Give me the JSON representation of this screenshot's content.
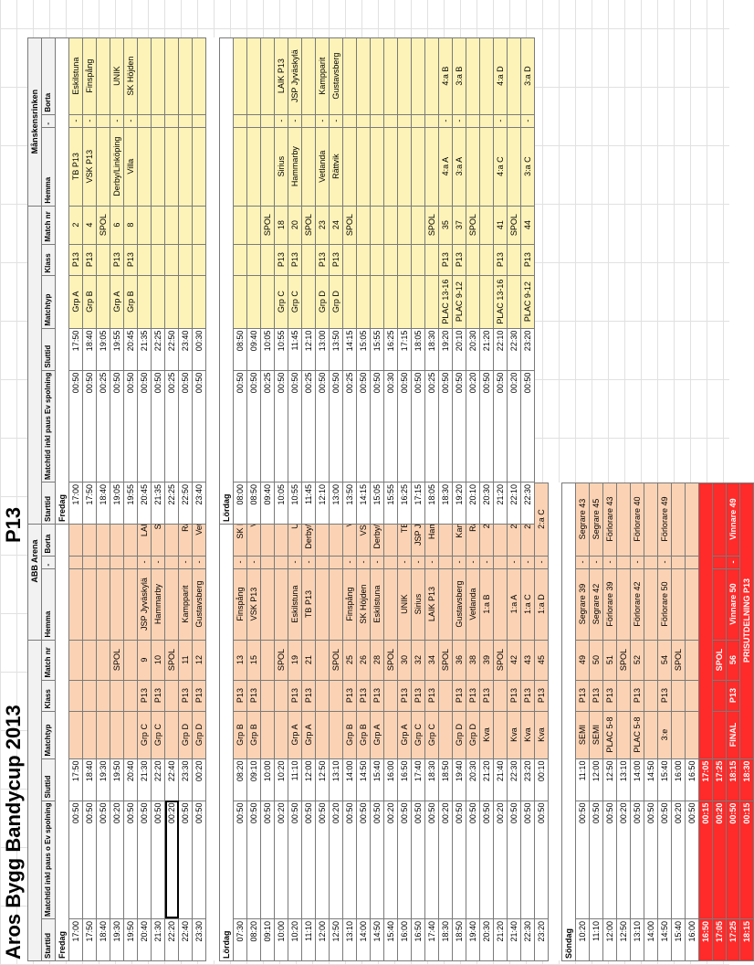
{
  "title": "Aros Bygg Bandycup 2013",
  "class_title": "P13",
  "left": {
    "arena": "ABB Arena",
    "headers": [
      "Starttid",
      "Matchtid inkl paus o Ev spolning",
      "Sluttid",
      "Matchtyp",
      "Klass",
      "Match nr",
      "Hemma",
      "-",
      "Borta"
    ],
    "days": [
      {
        "label": "Fredag",
        "rows": [
          [
            "17:00",
            "00:50",
            "17:50",
            "",
            "",
            "",
            "",
            "",
            ""
          ],
          [
            "17:50",
            "00:50",
            "18:40",
            "",
            "",
            "",
            "",
            "",
            ""
          ],
          [
            "18:40",
            "00:50",
            "19:30",
            "",
            "",
            "",
            "",
            "",
            ""
          ],
          [
            "19:30",
            "00:20",
            "19:50",
            "",
            "",
            "SPOL",
            "",
            "",
            ""
          ],
          [
            "19:50",
            "00:50",
            "20:40",
            "",
            "",
            "",
            "",
            "",
            ""
          ],
          [
            "20:40",
            "00:50",
            "21:30",
            "Grp C",
            "P13",
            "9",
            "JSP Jyväskylä",
            "-",
            "LAIK P13"
          ],
          [
            "21:30",
            "00:50",
            "22:20",
            "Grp C",
            "P13",
            "10",
            "Hammarby",
            "-",
            "Sirius"
          ],
          [
            "22:20",
            "00:20",
            "22:40",
            "",
            "",
            "SPOL",
            "",
            "",
            ""
          ],
          [
            "22:40",
            "00:50",
            "23:30",
            "Grp D",
            "P13",
            "11",
            "Kampparit",
            "-",
            "Rättvik"
          ],
          [
            "23:30",
            "00:50",
            "00:20",
            "Grp D",
            "P13",
            "12",
            "Gustavsberg",
            "-",
            "Vetlanda"
          ]
        ]
      },
      {
        "label": "Lördag",
        "rows": [
          [
            "07:30",
            "00:50",
            "08:20",
            "Grp B",
            "P13",
            "13",
            "Finspång",
            "-",
            "SK Höjden"
          ],
          [
            "08:20",
            "00:50",
            "09:10",
            "Grp B",
            "P13",
            "15",
            "VSK P13",
            "-",
            "Villa"
          ],
          [
            "09:10",
            "00:50",
            "10:00",
            "",
            "",
            "",
            "",
            "",
            ""
          ],
          [
            "10:00",
            "00:20",
            "10:20",
            "",
            "",
            "SPOL",
            "",
            "",
            ""
          ],
          [
            "10:20",
            "00:50",
            "11:10",
            "Grp A",
            "P13",
            "19",
            "Eskilstuna",
            "-",
            "UNIK"
          ],
          [
            "11:10",
            "00:50",
            "12:00",
            "Grp A",
            "P13",
            "21",
            "TB P13",
            "-",
            "Derby/Linköping"
          ],
          [
            "12:00",
            "00:50",
            "12:50",
            "",
            "",
            "",
            "",
            "",
            ""
          ],
          [
            "12:50",
            "00:20",
            "13:10",
            "",
            "",
            "SPOL",
            "",
            "",
            ""
          ],
          [
            "13:10",
            "00:50",
            "14:00",
            "Grp B",
            "P13",
            "25",
            "Finspång",
            "-",
            "Villa"
          ],
          [
            "14:00",
            "00:50",
            "14:50",
            "Grp B",
            "P13",
            "26",
            "SK Höjden",
            "-",
            "VSK P13"
          ],
          [
            "14:50",
            "00:50",
            "15:40",
            "Grp A",
            "P13",
            "28",
            "Eskilstuna",
            "-",
            "Derby/Linköping"
          ],
          [
            "15:40",
            "00:20",
            "16:00",
            "",
            "",
            "SPOL",
            "",
            "",
            ""
          ],
          [
            "16:00",
            "00:50",
            "16:50",
            "Grp A",
            "P13",
            "30",
            "UNIK",
            "-",
            "TB P13"
          ],
          [
            "16:50",
            "00:50",
            "17:40",
            "Grp C",
            "P13",
            "32",
            "Sirius",
            "-",
            "JSP Jyväskylä"
          ],
          [
            "17:40",
            "00:50",
            "18:30",
            "Grp C",
            "P13",
            "34",
            "LAIK P13",
            "-",
            "Hammarby"
          ],
          [
            "18:30",
            "00:20",
            "18:50",
            "",
            "",
            "SPOL",
            "",
            "",
            ""
          ],
          [
            "18:50",
            "00:50",
            "19:40",
            "Grp D",
            "P13",
            "36",
            "Gustavsberg",
            "-",
            "Kampparit"
          ],
          [
            "19:40",
            "00:50",
            "20:30",
            "Grp D",
            "P13",
            "38",
            "Vetlanda",
            "-",
            "Rättvik"
          ],
          [
            "20:30",
            "00:50",
            "21:20",
            "Kva",
            "P13",
            "39",
            "1:a B",
            "-",
            "2:a A"
          ],
          [
            "21:20",
            "00:20",
            "21:40",
            "",
            "",
            "SPOL",
            "",
            "",
            ""
          ],
          [
            "21:40",
            "00:50",
            "22:30",
            "Kva",
            "P13",
            "42",
            "1:a A",
            "-",
            "2:a B"
          ],
          [
            "22:30",
            "00:50",
            "23:20",
            "Kva",
            "P13",
            "43",
            "1:a C",
            "-",
            "2:a D"
          ],
          [
            "23:20",
            "00:50",
            "00:10",
            "Kva",
            "P13",
            "45",
            "1:a D",
            "-",
            "2:a C"
          ]
        ]
      },
      {
        "label": "Söndag",
        "rows": [
          [
            "10:20",
            "00:50",
            "11:10",
            "SEMI",
            "P13",
            "49",
            "Segrare 39",
            "-",
            "Segrare 43"
          ],
          [
            "11:10",
            "00:50",
            "12:00",
            "SEMI",
            "P13",
            "50",
            "Segrare 42",
            "-",
            "Segrare 45"
          ],
          [
            "12:00",
            "00:50",
            "12:50",
            "PLAC 5-8",
            "P13",
            "51",
            "Förlorare 39",
            "-",
            "Förlorare 43"
          ],
          [
            "12:50",
            "00:20",
            "13:10",
            "",
            "",
            "SPOL",
            "",
            "",
            ""
          ],
          [
            "13:10",
            "00:50",
            "14:00",
            "PLAC 5-8",
            "P13",
            "52",
            "Förlorare 42",
            "-",
            "Förlorare 40"
          ],
          [
            "14:00",
            "00:50",
            "14:50",
            "",
            "",
            "",
            "",
            "",
            ""
          ],
          [
            "14:50",
            "00:50",
            "15:40",
            "3:e",
            "P13",
            "54",
            "Förlorare 50",
            "-",
            "Förlorare 49"
          ],
          [
            "15:40",
            "00:20",
            "16:00",
            "",
            "",
            "SPOL",
            "",
            "",
            ""
          ],
          [
            "16:00",
            "00:50",
            "16:50",
            "",
            "",
            "",
            "",
            "",
            ""
          ]
        ]
      }
    ],
    "red_rows": [
      [
        "16:50",
        "00:15",
        "17:05"
      ],
      [
        "17:05",
        "00:20",
        "17:25",
        "",
        "",
        "SPOL",
        "",
        "",
        ""
      ],
      [
        "17:25",
        "00:50",
        "18:15",
        "FINAL",
        "P13",
        "56",
        "Vinnare 50",
        "-",
        "Vinnare 49"
      ],
      [
        "18:15",
        "00:15",
        "18:30"
      ]
    ],
    "prize_label": "PRISUTDELNING P13"
  },
  "right": {
    "rink": "Månskensrinken",
    "headers": [
      "Starttid",
      "Matchtid inkl paus Ev spolning",
      "Sluttid",
      "Matchtyp",
      "Klass",
      "Match nr",
      "Hemma",
      "-",
      "Borta"
    ],
    "days": [
      {
        "label": "Fredag",
        "rows": [
          [
            "17:00",
            "00:50",
            "17:50",
            "Grp A",
            "P13",
            "2",
            "TB P13",
            "-",
            "Eskilstuna"
          ],
          [
            "17:50",
            "00:50",
            "18:40",
            "Grp B",
            "P13",
            "4",
            "VSK P13",
            "-",
            "Finspång"
          ],
          [
            "18:40",
            "00:25",
            "19:05",
            "",
            "",
            "SPOL",
            "",
            "",
            ""
          ],
          [
            "19:05",
            "00:50",
            "19:55",
            "Grp A",
            "P13",
            "6",
            "Derby/Linköping",
            "-",
            "UNIK"
          ],
          [
            "19:55",
            "00:50",
            "20:45",
            "Grp B",
            "P13",
            "8",
            "Villa",
            "-",
            "SK Höjden"
          ],
          [
            "20:45",
            "00:50",
            "21:35",
            "",
            "",
            "",
            "",
            "",
            ""
          ],
          [
            "21:35",
            "00:50",
            "22:25",
            "",
            "",
            "",
            "",
            "",
            ""
          ],
          [
            "22:25",
            "00:25",
            "22:50",
            "",
            "",
            "",
            "",
            "",
            ""
          ],
          [
            "22:50",
            "00:50",
            "23:40",
            "",
            "",
            "",
            "",
            "",
            ""
          ],
          [
            "23:40",
            "00:50",
            "00:30",
            "",
            "",
            "",
            "",
            "",
            ""
          ]
        ]
      },
      {
        "label": "Lördag",
        "rows": [
          [
            "08:00",
            "00:50",
            "08:50",
            "",
            "",
            "",
            "",
            "",
            ""
          ],
          [
            "08:50",
            "00:50",
            "09:40",
            "",
            "",
            "",
            "",
            "",
            ""
          ],
          [
            "09:40",
            "00:25",
            "10:05",
            "",
            "",
            "SPOL",
            "",
            "",
            ""
          ],
          [
            "10:05",
            "00:50",
            "10:55",
            "Grp C",
            "P13",
            "18",
            "Sirius",
            "-",
            "LAIK P13"
          ],
          [
            "10:55",
            "00:50",
            "11:45",
            "Grp C",
            "P13",
            "20",
            "Hammarby",
            "-",
            "JSP Jyväskylä"
          ],
          [
            "11:45",
            "00:25",
            "12:10",
            "",
            "",
            "SPOL",
            "",
            "",
            ""
          ],
          [
            "12:10",
            "00:50",
            "13:00",
            "Grp D",
            "P13",
            "23",
            "Vetlanda",
            "-",
            "Kampparit"
          ],
          [
            "13:00",
            "00:50",
            "13:50",
            "Grp D",
            "P13",
            "24",
            "Rättvik",
            "-",
            "Gustavsberg"
          ],
          [
            "13:50",
            "00:25",
            "14:15",
            "",
            "",
            "SPOL",
            "",
            "",
            ""
          ],
          [
            "14:15",
            "00:50",
            "15:05",
            "",
            "",
            "",
            "",
            "",
            ""
          ],
          [
            "15:05",
            "00:50",
            "15:55",
            "",
            "",
            "",
            "",
            "",
            ""
          ],
          [
            "15:55",
            "00:30",
            "16:25",
            "",
            "",
            "",
            "",
            "",
            ""
          ],
          [
            "16:25",
            "00:50",
            "17:15",
            "",
            "",
            "",
            "",
            "",
            ""
          ],
          [
            "17:15",
            "00:50",
            "18:05",
            "",
            "",
            "",
            "",
            "",
            ""
          ],
          [
            "18:05",
            "00:25",
            "18:30",
            "",
            "",
            "SPOL",
            "",
            "",
            ""
          ],
          [
            "18:30",
            "00:50",
            "19:20",
            "PLAC 13-16",
            "P13",
            "35",
            "4:a A",
            "-",
            "4:a B"
          ],
          [
            "19:20",
            "00:50",
            "20:10",
            "PLAC 9-12",
            "P13",
            "37",
            "3:a A",
            "-",
            "3:a B"
          ],
          [
            "20:10",
            "00:20",
            "20:30",
            "",
            "",
            "SPOL",
            "",
            "",
            ""
          ],
          [
            "20:30",
            "00:50",
            "21:20",
            "",
            "",
            "",
            "",
            "",
            ""
          ],
          [
            "21:20",
            "00:50",
            "22:10",
            "PLAC 13-16",
            "P13",
            "41",
            "4:a C",
            "-",
            "4:a D"
          ],
          [
            "22:10",
            "00:20",
            "22:30",
            "",
            "",
            "SPOL",
            "",
            "",
            ""
          ],
          [
            "22:30",
            "00:50",
            "23:20",
            "PLAC 9-12",
            "P13",
            "44",
            "3:a C",
            "-",
            "3:a D"
          ]
        ]
      }
    ]
  }
}
